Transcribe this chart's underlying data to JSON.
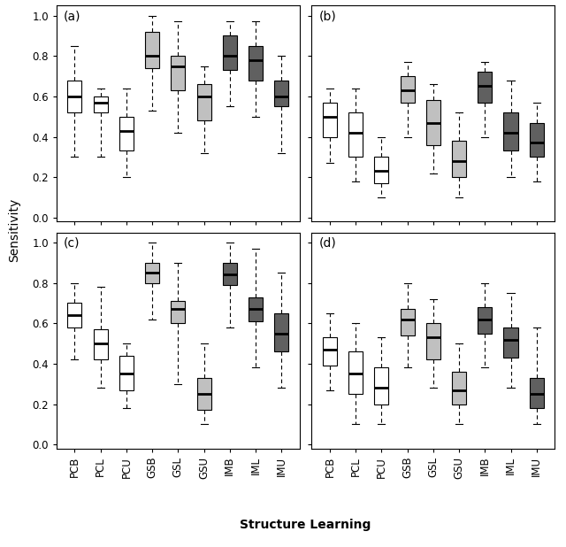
{
  "labels": [
    "PCB",
    "PCL",
    "PCU",
    "GSB",
    "GSL",
    "GSU",
    "IMB",
    "IML",
    "IMU"
  ],
  "colors": [
    "white",
    "white",
    "white",
    "#c0c0c0",
    "#c0c0c0",
    "#c0c0c0",
    "#606060",
    "#606060",
    "#606060"
  ],
  "subplot_labels": [
    "(a)",
    "(b)",
    "(c)",
    "(d)"
  ],
  "ylabel": "Sensitivity",
  "xlabel": "Structure Learning",
  "panels": {
    "a": {
      "boxes": [
        {
          "med": 0.6,
          "q1": 0.52,
          "q3": 0.68,
          "whislo": 0.3,
          "whishi": 0.85
        },
        {
          "med": 0.57,
          "q1": 0.52,
          "q3": 0.6,
          "whislo": 0.3,
          "whishi": 0.64
        },
        {
          "med": 0.43,
          "q1": 0.33,
          "q3": 0.5,
          "whislo": 0.2,
          "whishi": 0.64
        },
        {
          "med": 0.8,
          "q1": 0.74,
          "q3": 0.92,
          "whislo": 0.53,
          "whishi": 1.0
        },
        {
          "med": 0.75,
          "q1": 0.63,
          "q3": 0.8,
          "whislo": 0.42,
          "whishi": 0.97
        },
        {
          "med": 0.6,
          "q1": 0.48,
          "q3": 0.66,
          "whislo": 0.32,
          "whishi": 0.75
        },
        {
          "med": 0.8,
          "q1": 0.73,
          "q3": 0.9,
          "whislo": 0.55,
          "whishi": 0.97
        },
        {
          "med": 0.78,
          "q1": 0.68,
          "q3": 0.85,
          "whislo": 0.5,
          "whishi": 0.97
        },
        {
          "med": 0.6,
          "q1": 0.55,
          "q3": 0.68,
          "whislo": 0.32,
          "whishi": 0.8
        }
      ]
    },
    "b": {
      "boxes": [
        {
          "med": 0.5,
          "q1": 0.4,
          "q3": 0.57,
          "whislo": 0.27,
          "whishi": 0.64
        },
        {
          "med": 0.42,
          "q1": 0.3,
          "q3": 0.52,
          "whislo": 0.18,
          "whishi": 0.64
        },
        {
          "med": 0.23,
          "q1": 0.17,
          "q3": 0.3,
          "whislo": 0.1,
          "whishi": 0.4
        },
        {
          "med": 0.63,
          "q1": 0.57,
          "q3": 0.7,
          "whislo": 0.4,
          "whishi": 0.77
        },
        {
          "med": 0.47,
          "q1": 0.36,
          "q3": 0.58,
          "whislo": 0.22,
          "whishi": 0.66
        },
        {
          "med": 0.28,
          "q1": 0.2,
          "q3": 0.38,
          "whislo": 0.1,
          "whishi": 0.52
        },
        {
          "med": 0.65,
          "q1": 0.57,
          "q3": 0.72,
          "whislo": 0.4,
          "whishi": 0.77
        },
        {
          "med": 0.42,
          "q1": 0.33,
          "q3": 0.52,
          "whislo": 0.2,
          "whishi": 0.68
        },
        {
          "med": 0.37,
          "q1": 0.3,
          "q3": 0.47,
          "whislo": 0.18,
          "whishi": 0.57
        }
      ]
    },
    "c": {
      "boxes": [
        {
          "med": 0.64,
          "q1": 0.58,
          "q3": 0.7,
          "whislo": 0.42,
          "whishi": 0.8
        },
        {
          "med": 0.5,
          "q1": 0.42,
          "q3": 0.57,
          "whislo": 0.28,
          "whishi": 0.78
        },
        {
          "med": 0.35,
          "q1": 0.27,
          "q3": 0.44,
          "whislo": 0.18,
          "whishi": 0.5
        },
        {
          "med": 0.85,
          "q1": 0.8,
          "q3": 0.9,
          "whislo": 0.62,
          "whishi": 1.0
        },
        {
          "med": 0.67,
          "q1": 0.6,
          "q3": 0.71,
          "whislo": 0.3,
          "whishi": 0.9
        },
        {
          "med": 0.25,
          "q1": 0.17,
          "q3": 0.33,
          "whislo": 0.1,
          "whishi": 0.5
        },
        {
          "med": 0.84,
          "q1": 0.79,
          "q3": 0.9,
          "whislo": 0.58,
          "whishi": 1.0
        },
        {
          "med": 0.67,
          "q1": 0.61,
          "q3": 0.73,
          "whislo": 0.38,
          "whishi": 0.97
        },
        {
          "med": 0.55,
          "q1": 0.46,
          "q3": 0.65,
          "whislo": 0.28,
          "whishi": 0.85
        }
      ]
    },
    "d": {
      "boxes": [
        {
          "med": 0.47,
          "q1": 0.39,
          "q3": 0.53,
          "whislo": 0.27,
          "whishi": 0.65
        },
        {
          "med": 0.35,
          "q1": 0.25,
          "q3": 0.46,
          "whislo": 0.1,
          "whishi": 0.6
        },
        {
          "med": 0.28,
          "q1": 0.2,
          "q3": 0.38,
          "whislo": 0.1,
          "whishi": 0.53
        },
        {
          "med": 0.62,
          "q1": 0.54,
          "q3": 0.67,
          "whislo": 0.38,
          "whishi": 0.8
        },
        {
          "med": 0.53,
          "q1": 0.42,
          "q3": 0.6,
          "whislo": 0.28,
          "whishi": 0.72
        },
        {
          "med": 0.27,
          "q1": 0.2,
          "q3": 0.36,
          "whislo": 0.1,
          "whishi": 0.5
        },
        {
          "med": 0.62,
          "q1": 0.55,
          "q3": 0.68,
          "whislo": 0.38,
          "whishi": 0.8
        },
        {
          "med": 0.52,
          "q1": 0.43,
          "q3": 0.58,
          "whislo": 0.28,
          "whishi": 0.75
        },
        {
          "med": 0.25,
          "q1": 0.18,
          "q3": 0.33,
          "whislo": 0.1,
          "whishi": 0.58
        }
      ]
    }
  }
}
